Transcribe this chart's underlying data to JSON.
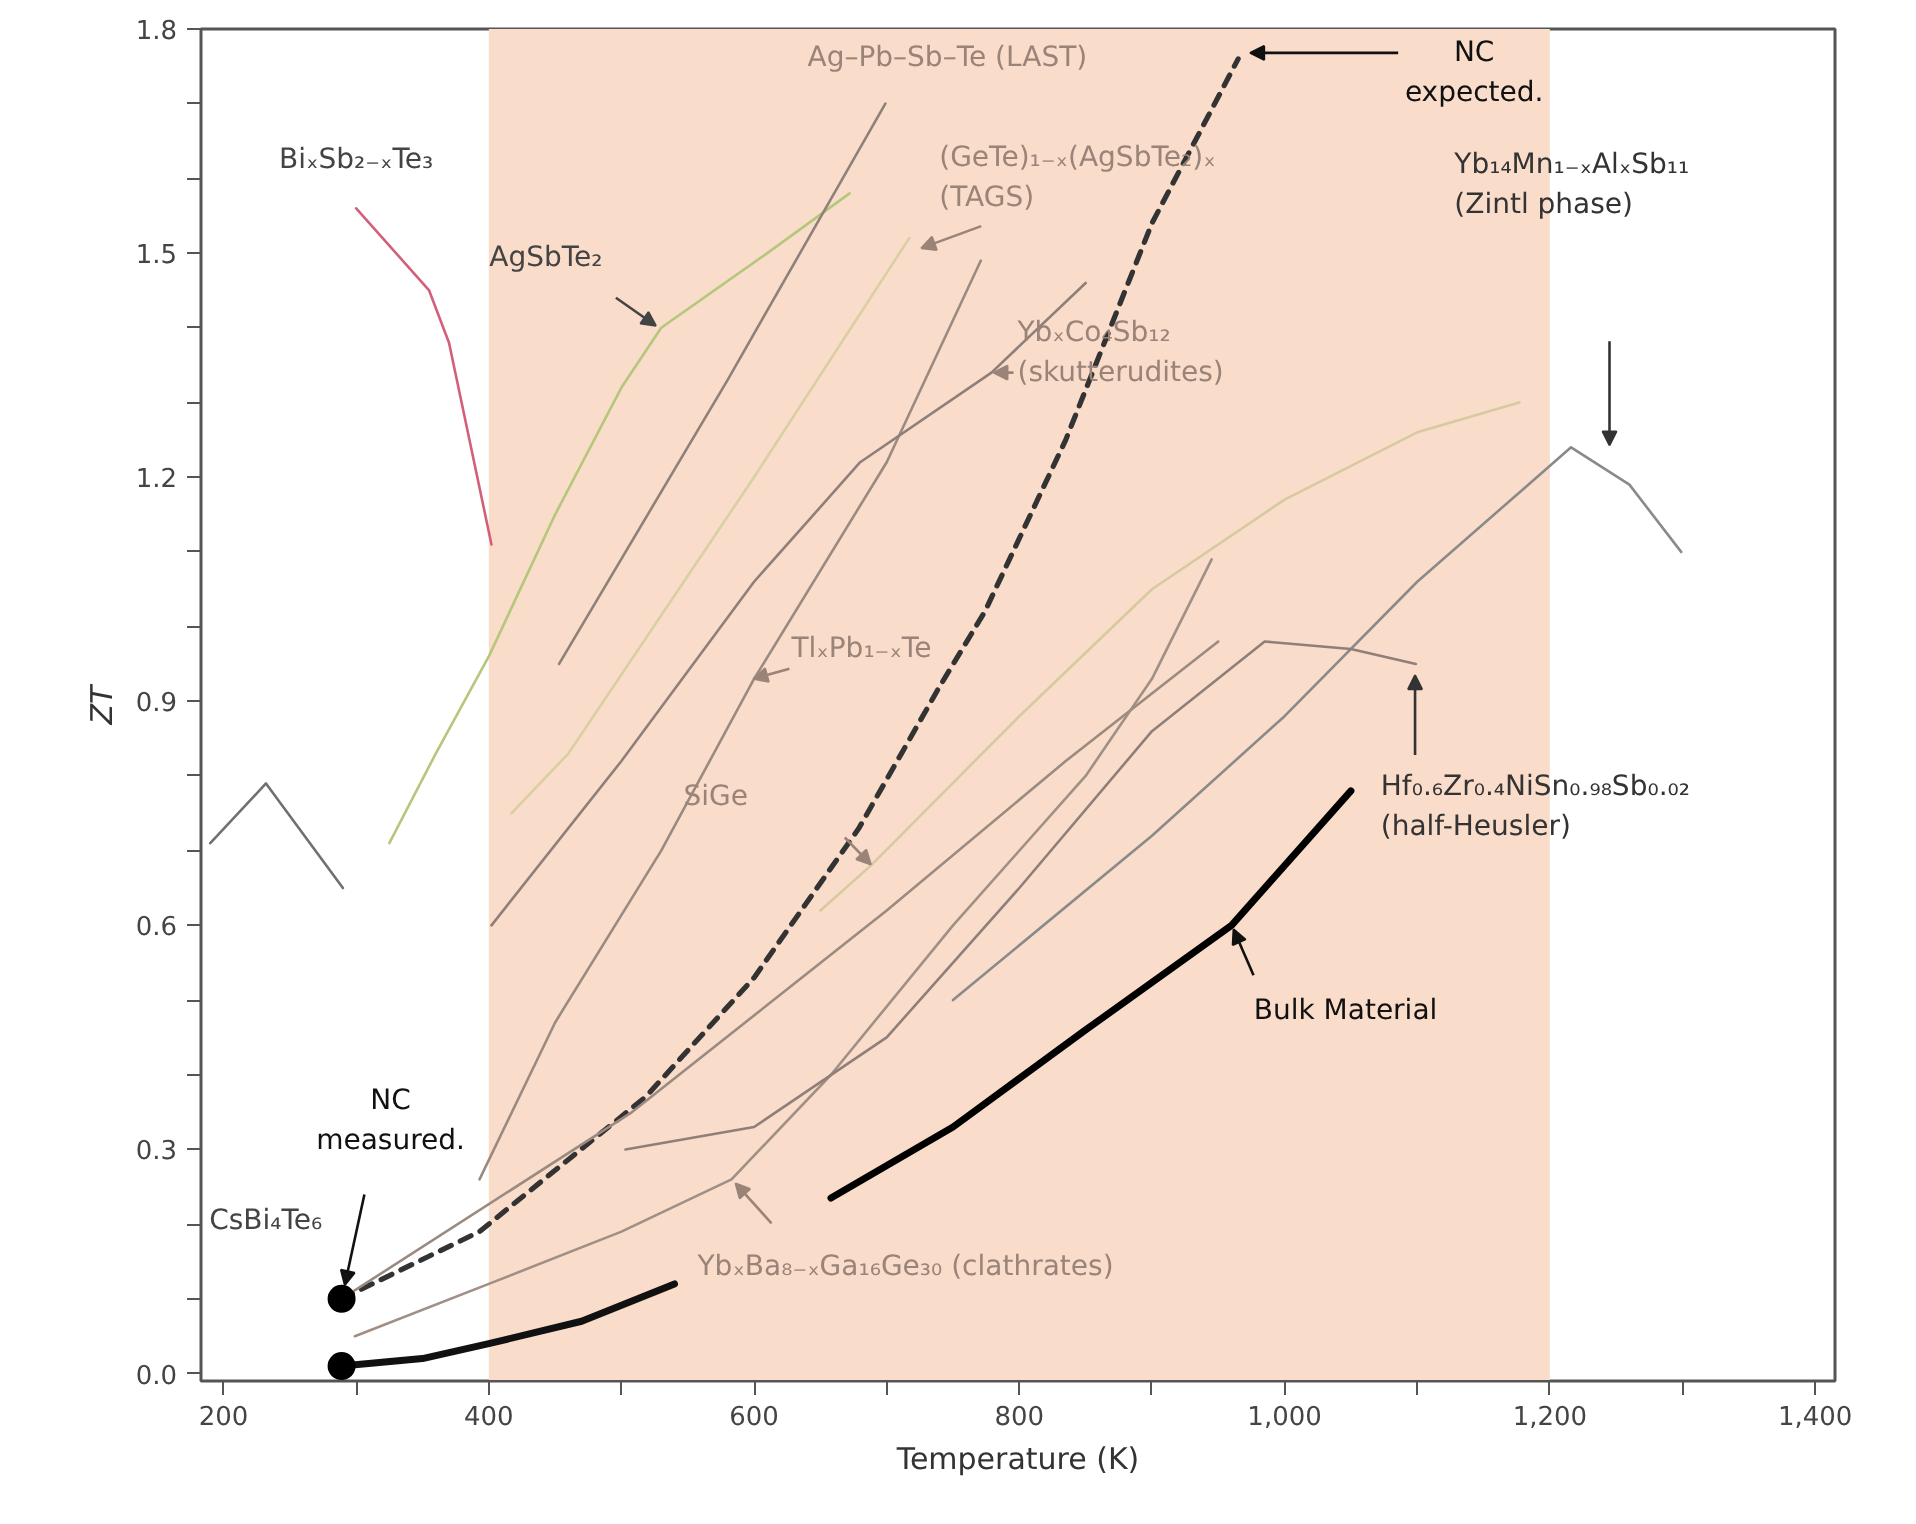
{
  "chart_data": {
    "type": "line",
    "xlabel": "Temperature (K)",
    "ylabel": "ZT",
    "xlim": [
      183,
      1415
    ],
    "ylim": [
      -0.01,
      1.8
    ],
    "xticks": [
      200,
      {
        "value": 300,
        "label": null
      },
      400,
      {
        "value": 500,
        "label": null
      },
      600,
      {
        "value": 700,
        "label": null
      },
      800,
      {
        "value": 900,
        "label": null
      },
      {
        "value": 1000,
        "label": "1,000"
      },
      {
        "value": 1100,
        "label": null
      },
      {
        "value": 1200,
        "label": "1,200"
      },
      {
        "value": 1300,
        "label": null
      },
      {
        "value": 1400,
        "label": "1,400"
      }
    ],
    "yticks": [
      {
        "value": 0,
        "label": "0.0"
      },
      {
        "value": 0.1,
        "label": null
      },
      {
        "value": 0.2,
        "label": null
      },
      0.3,
      {
        "value": 0.4,
        "label": null
      },
      {
        "value": 0.5,
        "label": null
      },
      0.6,
      {
        "value": 0.7,
        "label": null
      },
      {
        "value": 0.8,
        "label": null
      },
      0.9,
      {
        "value": 1.0,
        "label": null
      },
      {
        "value": 1.1,
        "label": null
      },
      1.2,
      {
        "value": 1.3,
        "label": null
      },
      {
        "value": 1.4,
        "label": null
      },
      1.5,
      {
        "value": 1.6,
        "label": null
      },
      {
        "value": 1.7,
        "label": null
      },
      1.8
    ],
    "grid": false,
    "marker": "none",
    "bands": [
      {
        "axis": "x",
        "from": 400,
        "to": 1200,
        "color": "#fadccb"
      }
    ],
    "series": [
      {
        "color": "#d2607a",
        "x": [
          300,
          355,
          370,
          402
        ],
        "values": [
          1.56,
          1.45,
          1.38,
          1.11
        ]
      },
      {
        "color": "#707070",
        "x": [
          190,
          232,
          290
        ],
        "values": [
          0.71,
          0.79,
          0.65
        ]
      },
      {
        "color": "#b5c77a",
        "x": [
          325,
          360,
          400,
          450,
          500,
          530,
          610,
          672
        ],
        "values": [
          0.71,
          0.83,
          0.96,
          1.15,
          1.32,
          1.4,
          1.5,
          1.58
        ]
      },
      {
        "color": "#8f8078",
        "x": [
          453,
          580,
          699
        ],
        "values": [
          0.95,
          1.33,
          1.7
        ]
      },
      {
        "color": "#d9cfa0",
        "x": [
          417,
          460,
          600,
          717
        ],
        "values": [
          0.75,
          0.83,
          1.2,
          1.52
        ]
      },
      {
        "color": "#9a8a80",
        "x": [
          393,
          450,
          530,
          600,
          700,
          771
        ],
        "values": [
          0.26,
          0.47,
          0.7,
          0.93,
          1.22,
          1.49
        ]
      },
      {
        "color": "#8f7f78",
        "x": [
          402,
          500,
          600,
          680,
          779,
          850
        ],
        "values": [
          0.6,
          0.82,
          1.06,
          1.22,
          1.34,
          1.46
        ]
      },
      {
        "color": "#333333",
        "line_style": "dashed",
        "x": [
          289,
          393,
          518,
          600,
          679,
          740,
          774,
          835,
          900,
          965
        ],
        "values": [
          0.1,
          0.19,
          0.37,
          0.53,
          0.73,
          0.92,
          1.02,
          1.25,
          1.54,
          1.76
        ]
      },
      {
        "color": "#9a8a80",
        "x": [
          289,
          508,
          700,
          835,
          950
        ],
        "values": [
          0.1,
          0.35,
          0.62,
          0.82,
          0.98
        ]
      },
      {
        "color": "#d6caa0",
        "x": [
          650,
          688,
          800,
          900,
          1000,
          1100,
          1177
        ],
        "values": [
          0.62,
          0.68,
          0.88,
          1.05,
          1.17,
          1.26,
          1.3
        ]
      },
      {
        "color": "#8a8a8a",
        "x": [
          750,
          900,
          1000,
          1100,
          1216,
          1260,
          1299
        ],
        "values": [
          0.5,
          0.72,
          0.88,
          1.06,
          1.24,
          1.19,
          1.1
        ]
      },
      {
        "color": "#a08f85",
        "x": [
          299,
          400,
          500,
          583,
          658,
          750,
          850,
          900,
          945
        ],
        "values": [
          0.05,
          0.12,
          0.19,
          0.26,
          0.4,
          0.6,
          0.8,
          0.93,
          1.09
        ]
      },
      {
        "color": "#8f7f78",
        "x": [
          503,
          600,
          700,
          800,
          900,
          985,
          1050,
          1099
        ],
        "values": [
          0.3,
          0.33,
          0.45,
          0.65,
          0.86,
          0.98,
          0.97,
          0.95
        ]
      },
      {
        "color": "#111111",
        "x": [
          289,
          350,
          400,
          470,
          540
        ],
        "values": [
          0.01,
          0.02,
          0.04,
          0.07,
          0.12
        ]
      },
      {
        "color": "#000000",
        "x": [
          658,
          750,
          850,
          960,
          1050
        ],
        "values": [
          0.235,
          0.33,
          0.46,
          0.6,
          0.78
        ]
      },
      {
        "type": "scatter",
        "marker": "circle",
        "color": "#000000",
        "x": [
          289,
          289
        ],
        "values": [
          0.1,
          0.01
        ]
      }
    ],
    "annotations": [
      {
        "text": "BiₓSb₂₋ₓTe₃",
        "x": 300,
        "y": 1.56
      },
      "CsBi₄Te₆",
      {
        "text": "AgSbTe₂",
        "x": 529,
        "y": 1.4
      },
      {
        "text": "Ag–Pb–Sb–Te (LAST)",
        "x": 699,
        "y": 1.7
      },
      {
        "text": "(GeTe)₁₋ₓ(AgSbTe₂)ₓ\n(TAGS)",
        "x": 717,
        "y": 1.52
      },
      {
        "text": "YbₓCo₄Sb₁₂\n(skutterudites)",
        "x": 779,
        "y": 1.34
      },
      {
        "text": "TlₓPb₁₋ₓTe",
        "x": 598,
        "y": 0.93
      },
      "SiGe",
      {
        "text": "YbₓBa₈₋ₓGa₁₆Ge₃₀ (clathrates)",
        "x": 583,
        "y": 0.26
      },
      "NC\nmeasured.",
      {
        "text": "NC\nexpected.",
        "x": 965,
        "y": 1.76
      },
      "Yb₁₄Mn₁₋ₓAlₓSb₁₁\n(Zintl phase)",
      "Hf₀.₆Zr₀.₄NiSn₀.₉₈Sb₀.₀₂\n(half-Heusler)",
      {
        "text": "Bulk Material",
        "x": 960,
        "y": 0.6
      }
    ]
  }
}
